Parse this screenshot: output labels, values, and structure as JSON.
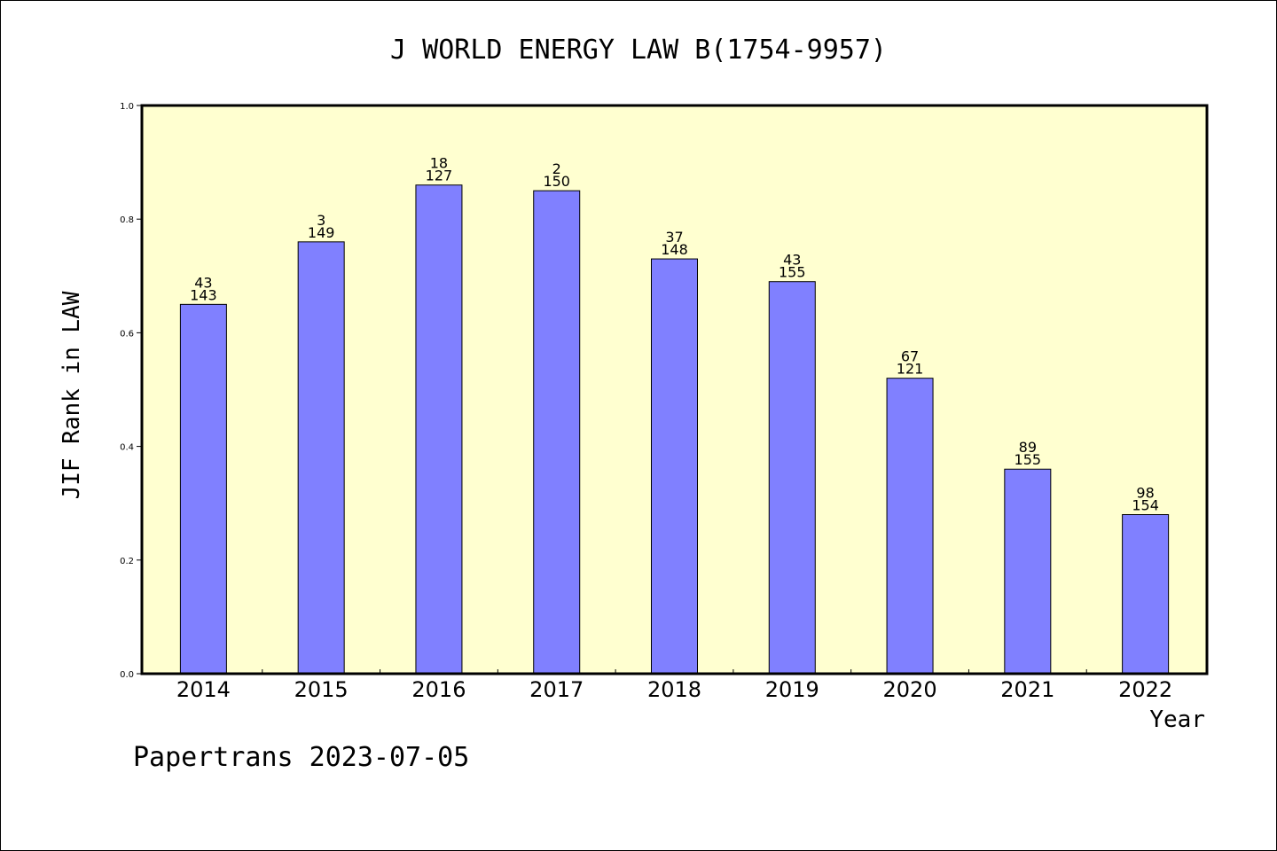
{
  "chart_data": {
    "type": "bar",
    "title": "J WORLD ENERGY LAW B(1754-9957)",
    "xlabel": "Year",
    "ylabel": "JIF Rank in LAW",
    "categories": [
      "2014",
      "2015",
      "2016",
      "2017",
      "2018",
      "2019",
      "2020",
      "2021",
      "2022"
    ],
    "values": [
      0.65,
      0.76,
      0.86,
      0.85,
      0.73,
      0.69,
      0.52,
      0.36,
      0.28
    ],
    "rank": [
      "43",
      "3",
      "18",
      "2",
      "37",
      "43",
      "67",
      "89",
      "98"
    ],
    "total": [
      "143",
      "149",
      "127",
      "150",
      "148",
      "155",
      "121",
      "155",
      "154"
    ],
    "ylim": [
      0,
      1
    ],
    "yticks": [
      "0.0",
      "0.2",
      "0.4",
      "0.6",
      "0.8",
      "1.0"
    ],
    "grid": false,
    "colors": {
      "bar": "#8080ff",
      "plot_background": "#ffffd0",
      "axis": "#000000"
    }
  },
  "footer": {
    "text": "Papertrans 2023-07-05"
  }
}
